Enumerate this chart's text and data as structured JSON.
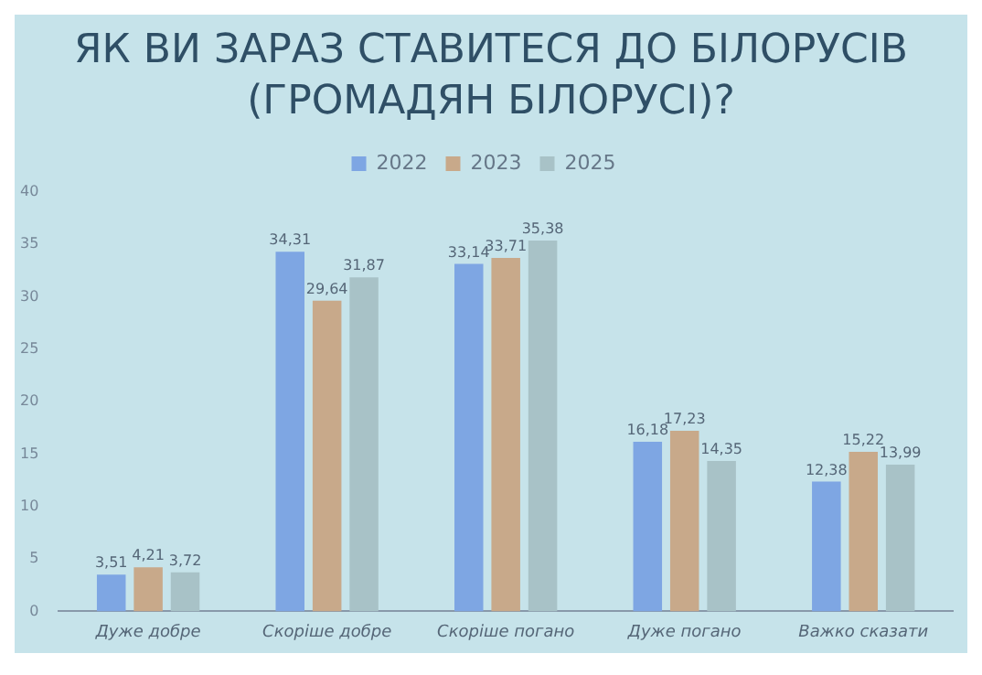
{
  "chart_data": {
    "type": "bar",
    "title": "ЯК ВИ ЗАРАЗ СТАВИТЕСЯ ДО БІЛОРУСІВ (ГРОМАДЯН БІЛОРУСІ)?",
    "categories": [
      "Дуже добре",
      "Скоріше добре",
      "Скоріше погано",
      "Дуже погано",
      "Важко сказати"
    ],
    "series": [
      {
        "name": "2022",
        "color": "#7ea6e3",
        "values": [
          3.51,
          34.31,
          33.14,
          16.18,
          12.38
        ],
        "value_labels": [
          "3,51",
          "34,31",
          "33,14",
          "16,18",
          "12,38"
        ]
      },
      {
        "name": "2023",
        "color": "#c8a98a",
        "values": [
          4.21,
          29.64,
          33.71,
          17.23,
          15.22
        ],
        "value_labels": [
          "4,21",
          "29,64",
          "33,71",
          "17,23",
          "15,22"
        ]
      },
      {
        "name": "2025",
        "color": "#a8c2c7",
        "values": [
          3.72,
          31.87,
          35.38,
          14.35,
          13.99
        ],
        "value_labels": [
          "3,72",
          "31,87",
          "35,38",
          "14,35",
          "13,99"
        ]
      }
    ],
    "ylim": [
      0,
      40
    ],
    "yticks": [
      0,
      5,
      10,
      15,
      20,
      25,
      30,
      35,
      40
    ],
    "grid": false,
    "legend": "top"
  }
}
